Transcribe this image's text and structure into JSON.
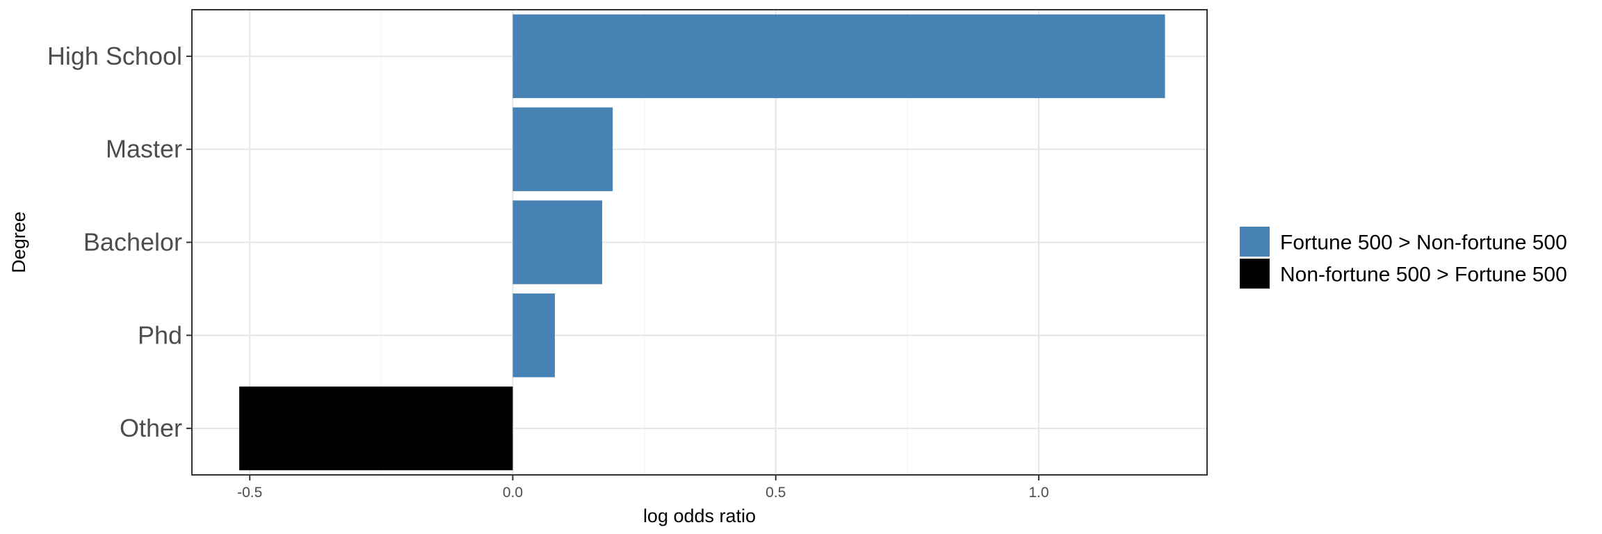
{
  "chart_data": {
    "type": "bar",
    "orientation": "horizontal",
    "xlabel": "log odds ratio",
    "ylabel": "Degree",
    "xlim": [
      -0.61,
      1.32
    ],
    "x_ticks": [
      -0.5,
      0.0,
      0.5,
      1.0
    ],
    "x_tick_labels": [
      "-0.5",
      "0.0",
      "0.5",
      "1.0"
    ],
    "grid": true,
    "legend_position": "right",
    "categories": [
      "High School",
      "Master",
      "Bachelor",
      "Phd",
      "Other"
    ],
    "values": [
      1.24,
      0.19,
      0.17,
      0.08,
      -0.52
    ],
    "groups": [
      "Fortune 500 > Non-fortune 500",
      "Fortune 500 > Non-fortune 500",
      "Fortune 500 > Non-fortune 500",
      "Fortune 500 > Non-fortune 500",
      "Non-fortune 500 > Fortune 500"
    ],
    "legend": [
      {
        "label": "Fortune 500 > Non-fortune 500",
        "color": "#4682B4"
      },
      {
        "label": "Non-fortune 500 > Fortune 500",
        "color": "#000000"
      }
    ]
  }
}
